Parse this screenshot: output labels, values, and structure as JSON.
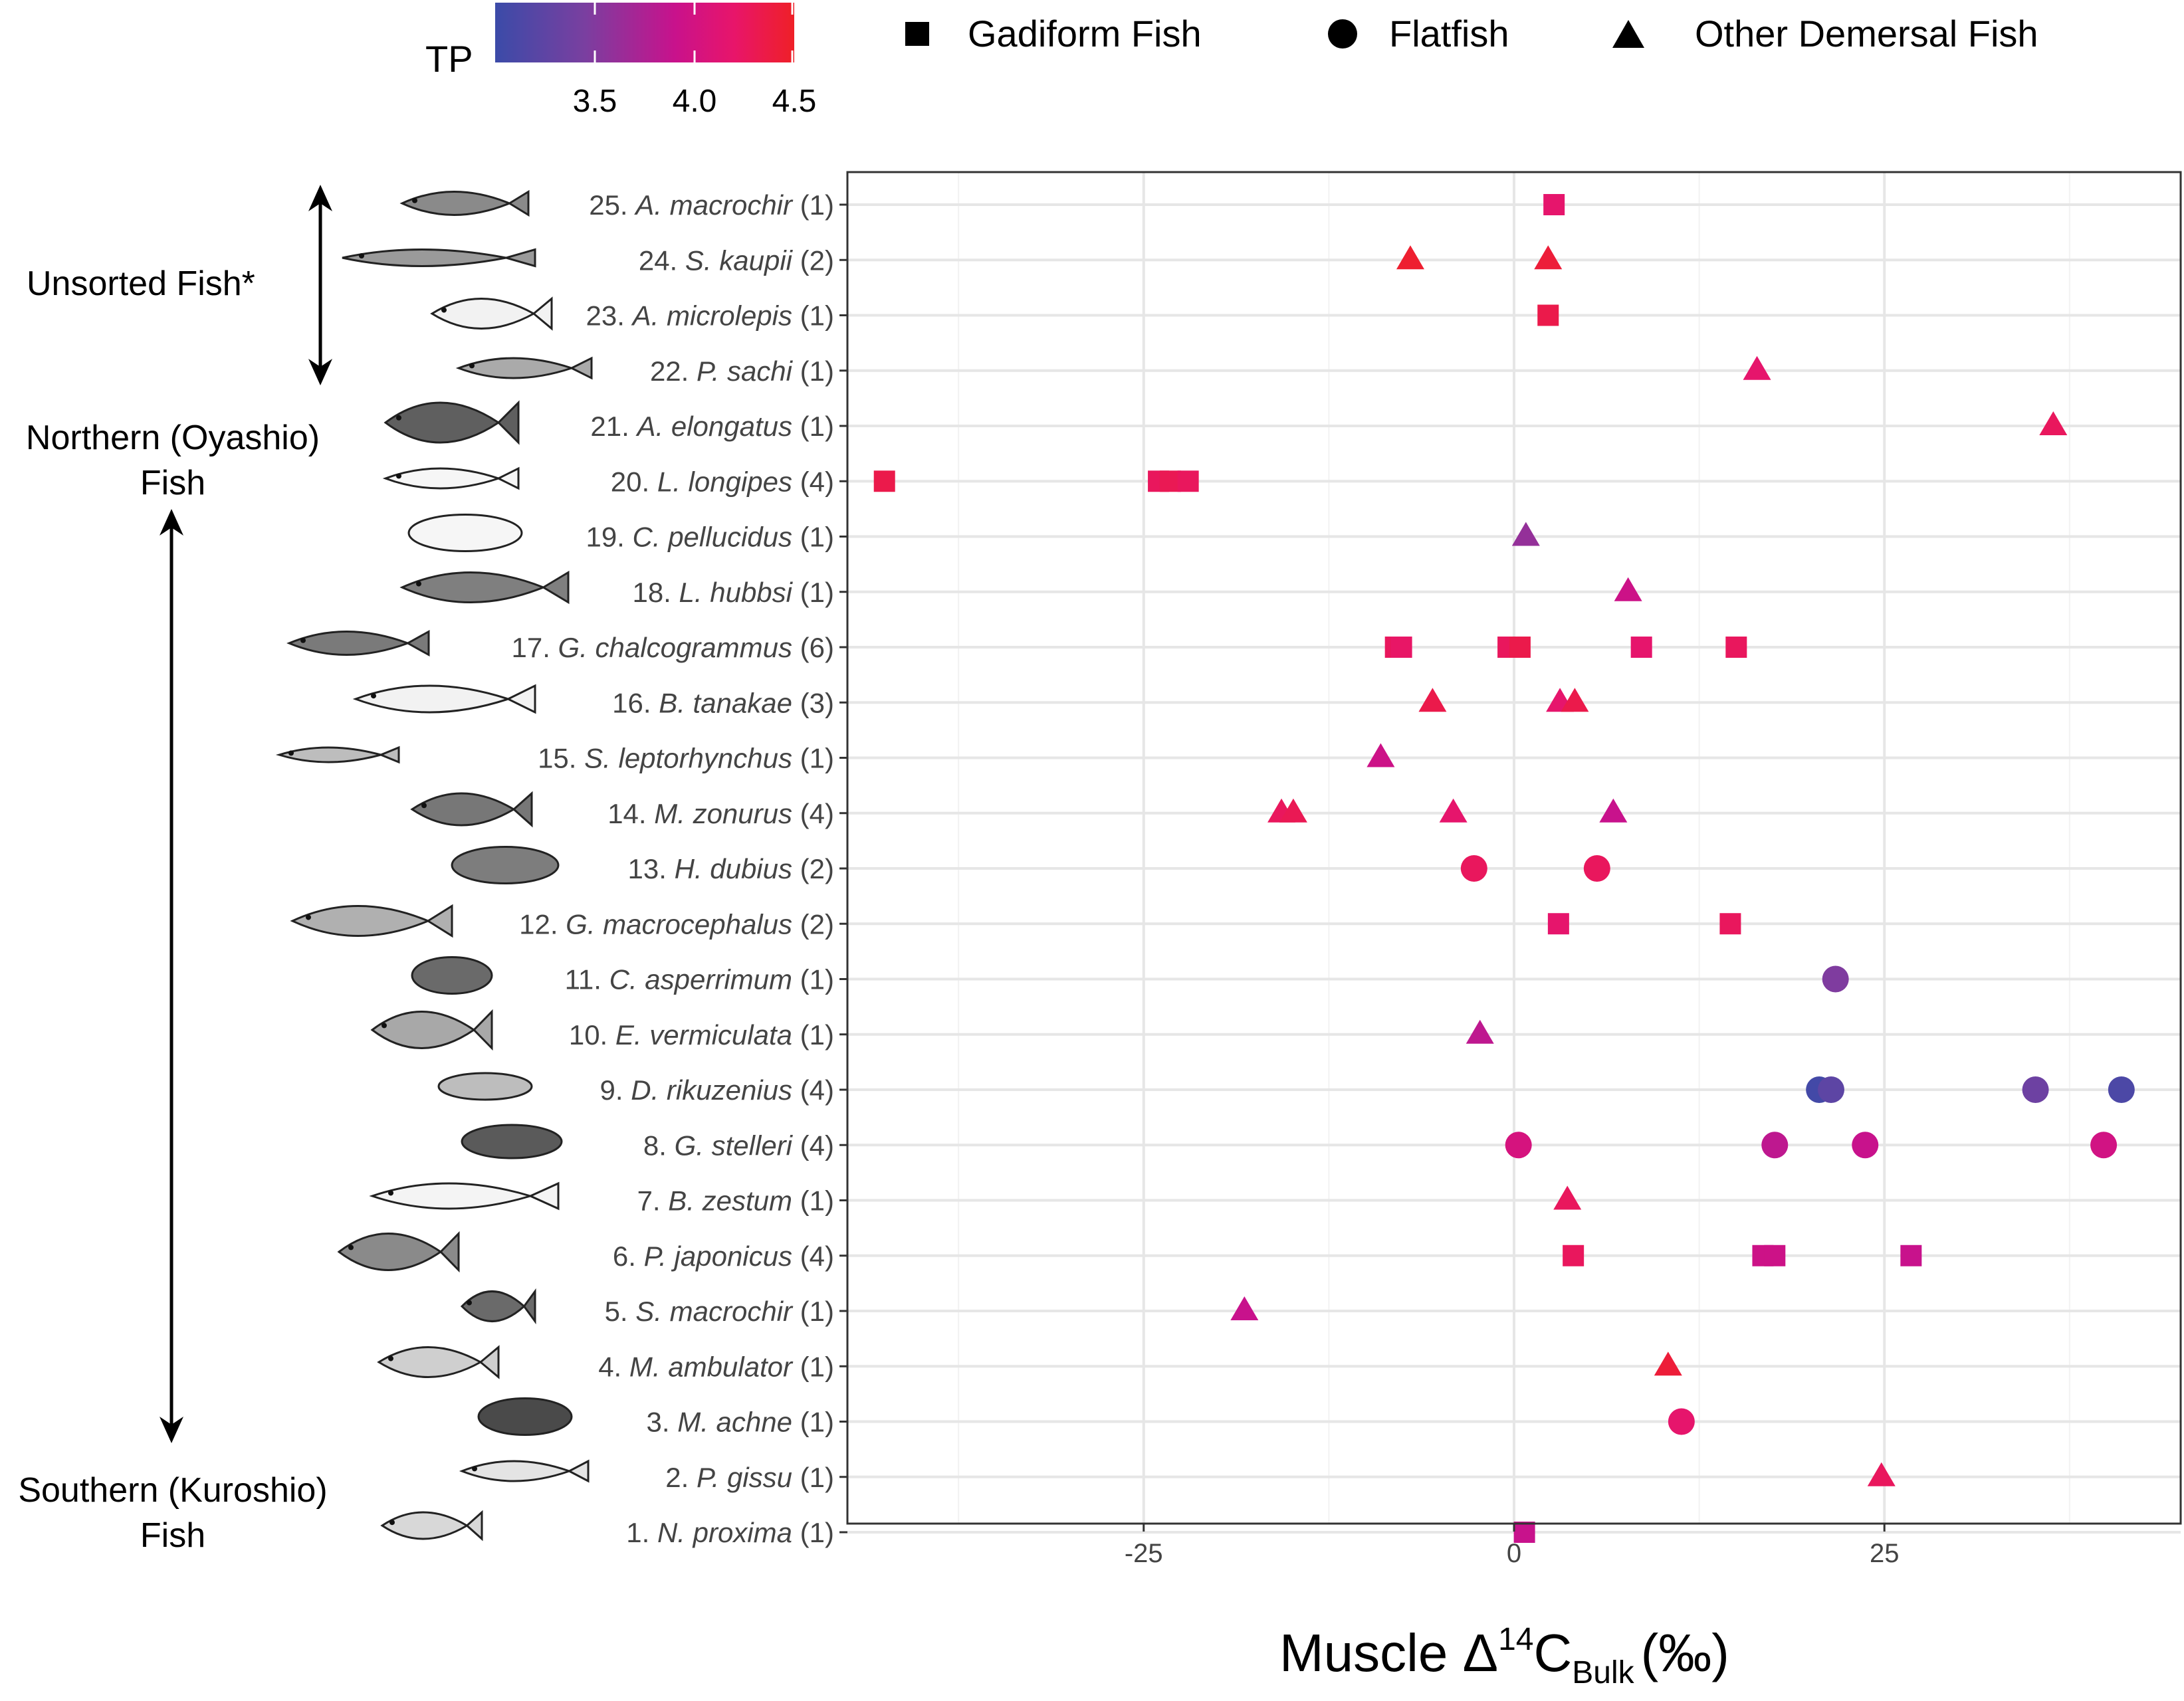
{
  "chart_data": {
    "type": "scatter",
    "xlabel": {
      "main": "Muscle Δ",
      "sup": "14",
      "c": "C",
      "sub": "Bulk",
      "unit": "(‰)"
    },
    "xlim": [
      -45,
      45
    ],
    "xticks": [
      -25,
      0,
      25
    ],
    "xtick_labels": [
      "-25",
      "0",
      "25"
    ],
    "color_scale": {
      "title": "TP",
      "range": [
        3.0,
        4.5
      ],
      "ticks": [
        3.5,
        4.0,
        4.5
      ],
      "tick_labels": [
        "3.5",
        "4.0",
        "4.5"
      ],
      "colors": [
        "#3b4ba8",
        "#7a3fa0",
        "#c8128c",
        "#e8156a",
        "#ef2027"
      ]
    },
    "legend": [
      {
        "shape": "square",
        "label": "Gadiform Fish"
      },
      {
        "shape": "circle",
        "label": "Flatfish"
      },
      {
        "shape": "triangle",
        "label": "Other Demersal Fish"
      }
    ],
    "groups": [
      {
        "label": "Unsorted Fish*",
        "from": 22,
        "to": 25
      },
      {
        "label": "Northern (Oyashio)",
        "label2": "Fish"
      },
      {
        "label": "Southern (Kuroshio)",
        "label2": "Fish"
      }
    ],
    "species": [
      {
        "n": "1.",
        "genus": "N.",
        "name": "proxima",
        "count": "(1)",
        "shape": "square",
        "points": [
          [
            0.7,
            3.75
          ]
        ]
      },
      {
        "n": "2.",
        "genus": "P.",
        "name": "gissu",
        "count": "(1)",
        "shape": "triangle",
        "points": [
          [
            24.8,
            4.2
          ]
        ]
      },
      {
        "n": "3.",
        "genus": "M.",
        "name": "achne",
        "count": "(1)",
        "shape": "circle",
        "points": [
          [
            11.3,
            4.1
          ]
        ]
      },
      {
        "n": "4.",
        "genus": "M.",
        "name": "ambulator",
        "count": "(1)",
        "shape": "triangle",
        "points": [
          [
            10.4,
            4.4
          ]
        ]
      },
      {
        "n": "5.",
        "genus": "S.",
        "name": "macrochir",
        "count": "(1)",
        "shape": "triangle",
        "points": [
          [
            -18.2,
            3.75
          ]
        ]
      },
      {
        "n": "6.",
        "genus": "P.",
        "name": "japonicus",
        "count": "(4)",
        "shape": "square",
        "points": [
          [
            4.0,
            4.2
          ],
          [
            16.8,
            3.8
          ],
          [
            17.6,
            3.8
          ],
          [
            26.8,
            3.75
          ]
        ]
      },
      {
        "n": "7.",
        "genus": "B.",
        "name": "zestum",
        "count": "(1)",
        "shape": "triangle",
        "points": [
          [
            3.6,
            4.2
          ]
        ]
      },
      {
        "n": "8.",
        "genus": "G.",
        "name": "stelleri",
        "count": "(4)",
        "shape": "circle",
        "points": [
          [
            0.3,
            3.9
          ],
          [
            17.6,
            3.7
          ],
          [
            23.7,
            3.75
          ],
          [
            39.8,
            3.85
          ]
        ]
      },
      {
        "n": "9.",
        "genus": "D.",
        "name": "rikuzenius",
        "count": "(4)",
        "shape": "circle",
        "points": [
          [
            20.6,
            3.05
          ],
          [
            21.4,
            3.2
          ],
          [
            35.2,
            3.3
          ],
          [
            41.0,
            3.1
          ]
        ]
      },
      {
        "n": "10.",
        "genus": "E.",
        "name": "vermiculata",
        "count": "(1)",
        "shape": "triangle",
        "points": [
          [
            -2.3,
            3.7
          ]
        ]
      },
      {
        "n": "11.",
        "genus": "C.",
        "name": "asperrimum",
        "count": "(1)",
        "shape": "circle",
        "points": [
          [
            21.7,
            3.4
          ]
        ]
      },
      {
        "n": "12.",
        "genus": "G.",
        "name": "macrocephalus",
        "count": "(2)",
        "shape": "square",
        "points": [
          [
            3.0,
            4.1
          ],
          [
            14.6,
            4.2
          ]
        ]
      },
      {
        "n": "13.",
        "genus": "H.",
        "name": "dubius",
        "count": "(2)",
        "shape": "circle",
        "points": [
          [
            -2.7,
            4.2
          ],
          [
            5.6,
            4.2
          ]
        ]
      },
      {
        "n": "14.",
        "genus": "M.",
        "name": "zonurus",
        "count": "(4)",
        "shape": "triangle",
        "points": [
          [
            -15.7,
            4.2
          ],
          [
            -14.9,
            4.25
          ],
          [
            -4.1,
            4.1
          ],
          [
            6.7,
            3.75
          ]
        ]
      },
      {
        "n": "15.",
        "genus": "S.",
        "name": "leptorhynchus",
        "count": "(1)",
        "shape": "triangle",
        "points": [
          [
            -9.0,
            3.8
          ]
        ]
      },
      {
        "n": "16.",
        "genus": "B.",
        "name": "tanakae",
        "count": "(3)",
        "shape": "triangle",
        "points": [
          [
            -5.5,
            4.3
          ],
          [
            3.1,
            4.1
          ],
          [
            4.1,
            4.3
          ]
        ]
      },
      {
        "n": "17.",
        "genus": "G.",
        "name": "chalcogrammus",
        "count": "(6)",
        "shape": "square",
        "points": [
          [
            -8.0,
            4.2
          ],
          [
            -7.6,
            4.15
          ],
          [
            -0.4,
            4.2
          ],
          [
            0.4,
            4.3
          ],
          [
            8.6,
            4.1
          ],
          [
            15.0,
            4.2
          ]
        ]
      },
      {
        "n": "18.",
        "genus": "L.",
        "name": "hubbsi",
        "count": "(1)",
        "shape": "triangle",
        "points": [
          [
            7.7,
            3.8
          ]
        ]
      },
      {
        "n": "19.",
        "genus": "C.",
        "name": "pellucidus",
        "count": "(1)",
        "shape": "triangle",
        "points": [
          [
            0.8,
            3.5
          ]
        ]
      },
      {
        "n": "20.",
        "genus": "L.",
        "name": "longipes",
        "count": "(4)",
        "shape": "square",
        "points": [
          [
            -42.5,
            4.3
          ],
          [
            -24.0,
            4.2
          ],
          [
            -23.2,
            4.25
          ],
          [
            -22.0,
            4.2
          ]
        ]
      },
      {
        "n": "21.",
        "genus": "A.",
        "name": "elongatus",
        "count": "(1)",
        "shape": "triangle",
        "points": [
          [
            36.4,
            4.2
          ]
        ]
      },
      {
        "n": "22.",
        "genus": "P.",
        "name": "sachi",
        "count": "(1)",
        "shape": "triangle",
        "points": [
          [
            16.4,
            4.1
          ]
        ]
      },
      {
        "n": "23.",
        "genus": "A.",
        "name": "microlepis",
        "count": "(1)",
        "shape": "square",
        "points": [
          [
            2.3,
            4.3
          ]
        ]
      },
      {
        "n": "24.",
        "genus": "S.",
        "name": "kaupii",
        "count": "(2)",
        "shape": "triangle",
        "points": [
          [
            -7.0,
            4.45
          ],
          [
            2.3,
            4.4
          ]
        ]
      },
      {
        "n": "25.",
        "genus": "A.",
        "name": "macrochir",
        "count": "(1)",
        "shape": "square",
        "points": [
          [
            2.7,
            4.1
          ]
        ]
      }
    ]
  }
}
